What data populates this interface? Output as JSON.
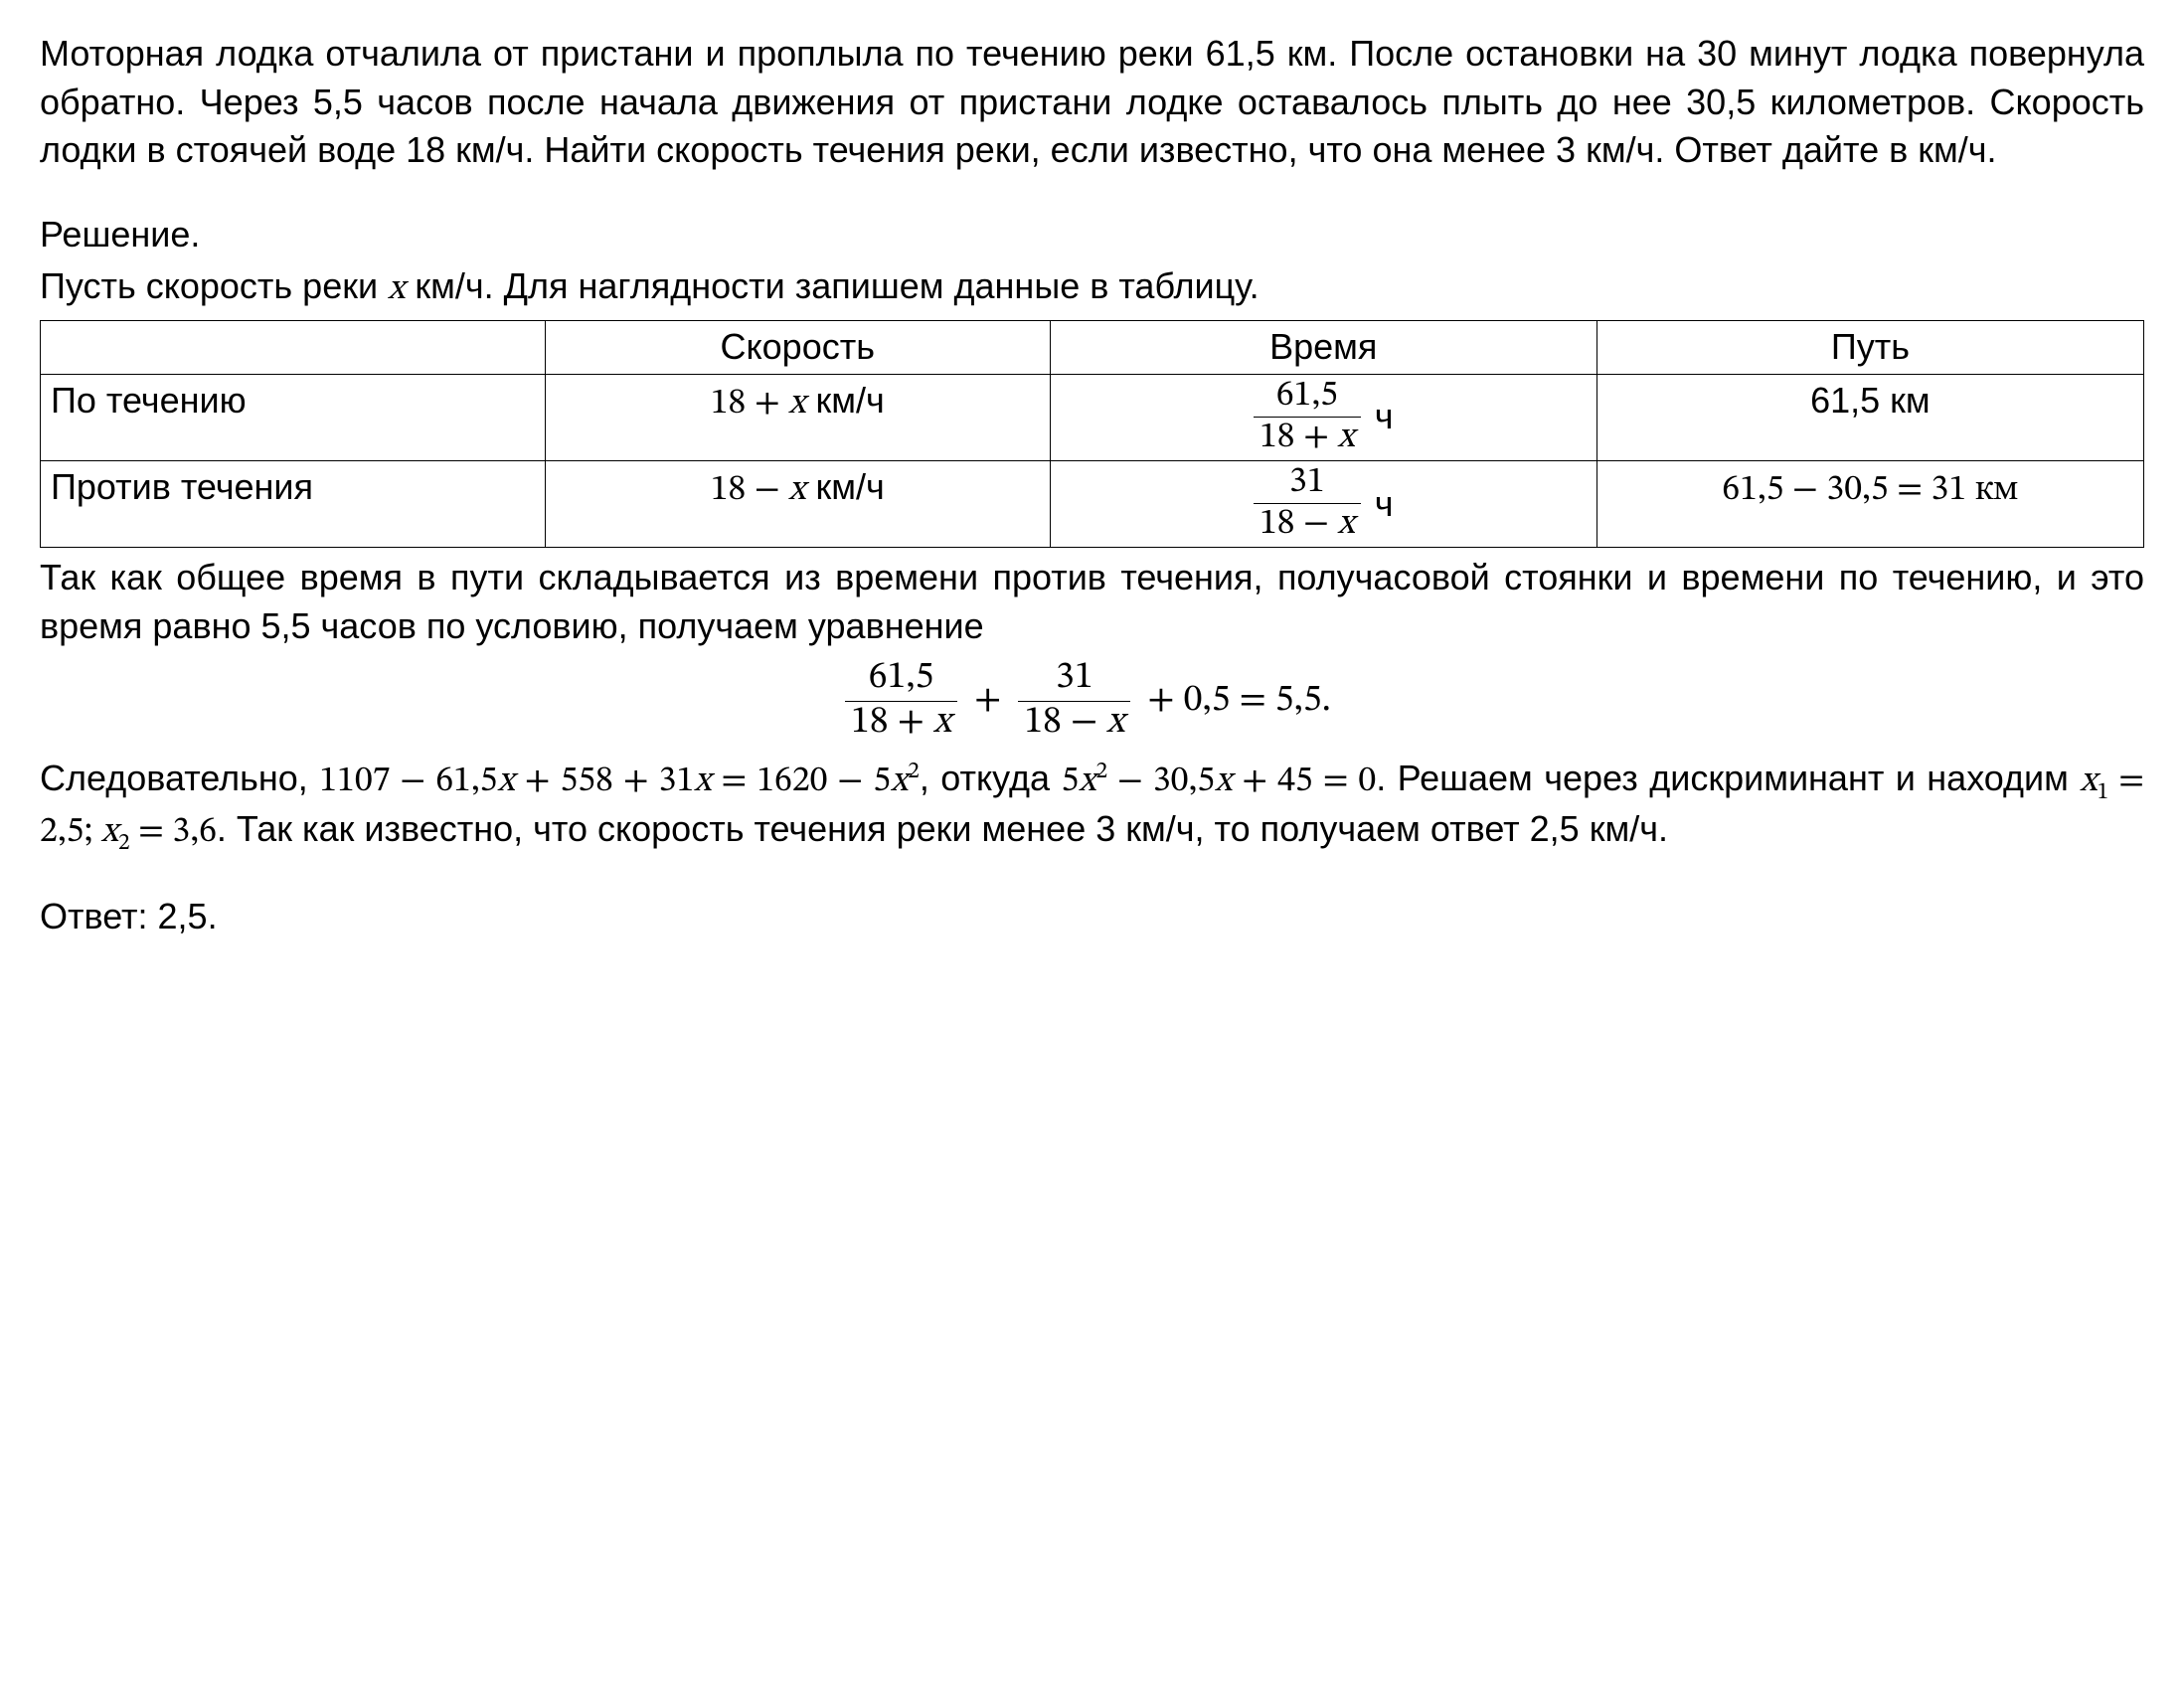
{
  "problem_text": "Моторная лодка отчалила от пристани и проплыла по течению реки 61,5 км. После остановки на 30 минут лодка повернула обратно. Через 5,5 часов после начала движения от пристани лодке оставалось плыть до нее 30,5 километров. Скорость лодки в стоячей воде 18 км/ч. Найти скорость течения реки, если известно, что она менее 3 км/ч. Ответ дайте в км/ч.",
  "solution_label": "Решение.",
  "intro_before_x": "Пусть скорость реки ",
  "intro_var": "x",
  "intro_after_x": " км/ч. Для наглядности запишем данные в таблицу.",
  "table": {
    "headers": {
      "blank": "",
      "speed": "Скорость",
      "time": "Время",
      "distance": "Путь"
    },
    "row1": {
      "label": "По течению",
      "speed_pre": "18 + ",
      "speed_var": "x",
      "speed_unit": " км/ч",
      "time_num": "61,5",
      "time_den_pre": "18 + ",
      "time_den_var": "x",
      "time_unit": "ч",
      "distance": "61,5 км"
    },
    "row2": {
      "label": "Против течения",
      "speed_pre": "18 − ",
      "speed_var": "x",
      "speed_unit": " км/ч",
      "time_num": "31",
      "time_den_pre": "18 − ",
      "time_den_var": "x",
      "time_unit": "ч",
      "distance": "61,5 − 30,5 = 31 км"
    }
  },
  "after_table_text": "Так как общее время в пути складывается из времени против течения, получасовой стоянки и времени по течению, и это время равно 5,5 часов по условию, получаем уравнение",
  "equation": {
    "f1_num": "61,5",
    "f1_den_pre": "18 + ",
    "f1_den_var": "x",
    "plus1": "+",
    "f2_num": "31",
    "f2_den_pre": "18 − ",
    "f2_den_var": "x",
    "plus2": "+ 0,5 = 5,5."
  },
  "conclusion": {
    "p1_a": "Следовательно, ",
    "p1_math_a": "1107 − 61,5",
    "p1_var_a": "x",
    "p1_math_b": " + 558 + 31",
    "p1_var_b": "x",
    "p1_math_c": " = 1620 − 5",
    "p1_var_c": "x",
    "p1_sq": "2",
    "p1_d": ", откуда ",
    "p1_math_d": "5",
    "p1_var_d": "x",
    "p1_sq2": "2",
    "p1_math_e": " − 30,5",
    "p1_var_e": "x",
    "p1_math_f": " + 45 = 0",
    "p2_a": ". Решаем через дискриминант и находим ",
    "p2_x1v": "x",
    "p2_x1s": "1",
    "p2_x1eq": " = 2,5; ",
    "p2_x2v": "x",
    "p2_x2s": "2",
    "p2_x2eq": " = 3,6",
    "p2_b": ". Так как известно, что скорость течения реки менее 3 км/ч, то получаем ответ 2,5 км/ч."
  },
  "answer_label": "Ответ: ",
  "answer_value": "2,5."
}
